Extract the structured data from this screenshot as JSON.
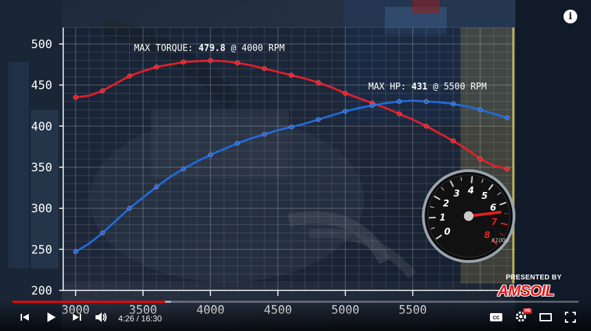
{
  "chart_data": {
    "type": "line",
    "x": [
      3000,
      3100,
      3200,
      3300,
      3400,
      3500,
      3600,
      3700,
      3800,
      3900,
      4000,
      4100,
      4200,
      4300,
      4400,
      4500,
      4600,
      4700,
      4800,
      4900,
      5000,
      5100,
      5200,
      5300,
      5400,
      5500,
      5600,
      5700,
      5800,
      5900,
      6000,
      6100,
      6200
    ],
    "series": [
      {
        "name": "Torque",
        "color": "#e8202a",
        "values": [
          435,
          437,
          443,
          452,
          461,
          467,
          472,
          475,
          478,
          479,
          479.8,
          479,
          477,
          474,
          470,
          466,
          462,
          458,
          453,
          447,
          440,
          434,
          428,
          422,
          415,
          408,
          400,
          391,
          382,
          372,
          360,
          352,
          348
        ]
      },
      {
        "name": "HP",
        "color": "#1f6fe0",
        "values": [
          247,
          257,
          270,
          285,
          300,
          313,
          326,
          338,
          348,
          357,
          365,
          372,
          379,
          385,
          390,
          395,
          399,
          403,
          408,
          413,
          418,
          422,
          425,
          428,
          430,
          431,
          430,
          429,
          427,
          424,
          420,
          415,
          410
        ]
      }
    ],
    "xlim": [
      3000,
      6200
    ],
    "ylim": [
      200,
      520
    ],
    "yticks": [
      "500",
      "450",
      "400",
      "350",
      "300",
      "250",
      "200"
    ],
    "xticks": [
      "3000",
      "3500",
      "4000",
      "4500",
      "5000",
      "5500"
    ],
    "grid": true,
    "annotations": {
      "torque_label": "MAX TORQUE:",
      "torque_value": "479.8",
      "torque_rpm": "@ 4000 RPM",
      "hp_label": "MAX HP:",
      "hp_value": "431",
      "hp_rpm": "@ 5500 RPM"
    }
  },
  "tachometer": {
    "numbers": [
      "0",
      "1",
      "2",
      "3",
      "4",
      "5",
      "6",
      "7",
      "8"
    ],
    "unit": "X1000",
    "needle_rpm": 6.4
  },
  "overlay": {
    "presented_by": "PRESENTED BY",
    "brand": "AMSOIL"
  },
  "player": {
    "current_time": "4:26",
    "duration": "16:30",
    "time_separator": "/",
    "progress_fraction": 0.269,
    "buffer_fraction": 0.28,
    "hd_badge": "HD",
    "cc_label": "CC",
    "info_label": "i"
  },
  "colors": {
    "progress_red": "#ff0000",
    "torque_red": "#e8202a",
    "hp_blue": "#1f6fe0"
  }
}
